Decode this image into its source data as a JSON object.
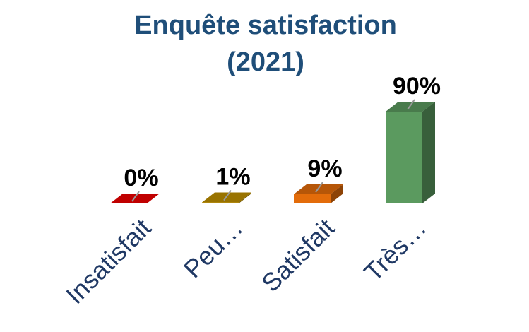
{
  "chart_data": {
    "type": "bar",
    "title": "Enquête satisfaction",
    "subtitle": "(2021)",
    "categories": [
      "Insatisfait",
      "Peu…",
      "Satisfait",
      "Très…"
    ],
    "values": [
      0,
      1,
      9,
      90
    ],
    "data_labels": [
      "0%",
      "1%",
      "9%",
      "90%"
    ],
    "colors": [
      "#c00000",
      "#bf9000",
      "#e36c0a",
      "#5b9a5f"
    ],
    "ylim": [
      0,
      100
    ],
    "grid": false,
    "legend": "none",
    "style": "3d"
  }
}
